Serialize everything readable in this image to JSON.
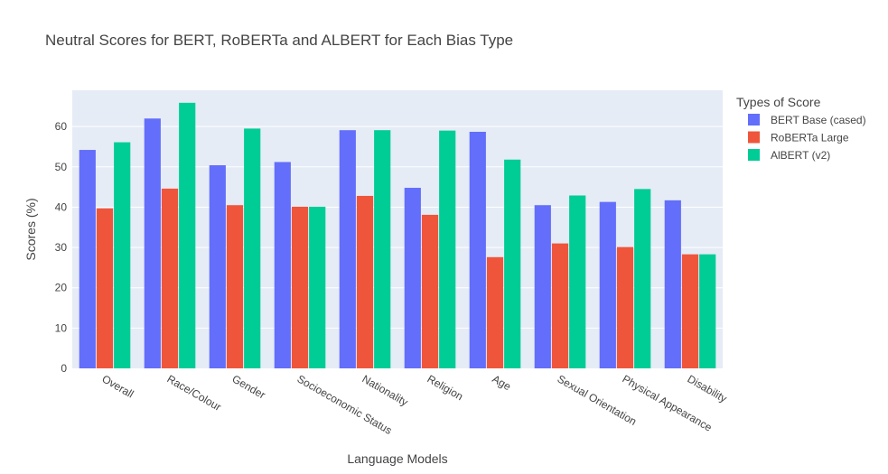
{
  "chart_data": {
    "type": "bar",
    "title": "Neutral Scores for BERT, RoBERTa and ALBERT for Each Bias Type",
    "xlabel": "Language Models",
    "ylabel": "Scores (%)",
    "ylim": [
      0,
      69
    ],
    "yticks": [
      0,
      10,
      20,
      30,
      40,
      50,
      60
    ],
    "grid": true,
    "legend_title": "Types of Score",
    "legend_position": "right",
    "categories": [
      "Overall",
      "Race/Colour",
      "Gender",
      "Socioeconomic Status",
      "Nationality",
      "Religion",
      "Age",
      "Sexual Orientation",
      "Physical Appearance",
      "Disability"
    ],
    "series": [
      {
        "name": "BERT Base (cased)",
        "color": "#636efa",
        "values": [
          54.2,
          62.0,
          50.4,
          51.2,
          59.1,
          44.8,
          58.7,
          40.5,
          41.3,
          41.7
        ]
      },
      {
        "name": "RoBERTa Large",
        "color": "#ef553b",
        "values": [
          39.7,
          44.6,
          40.5,
          40.1,
          42.8,
          38.1,
          27.6,
          31.0,
          30.1,
          28.3
        ]
      },
      {
        "name": "AlBERT (v2)",
        "color": "#00cc96",
        "values": [
          56.1,
          65.9,
          59.5,
          40.1,
          59.1,
          59.0,
          51.8,
          42.9,
          44.5,
          28.3
        ]
      }
    ]
  }
}
